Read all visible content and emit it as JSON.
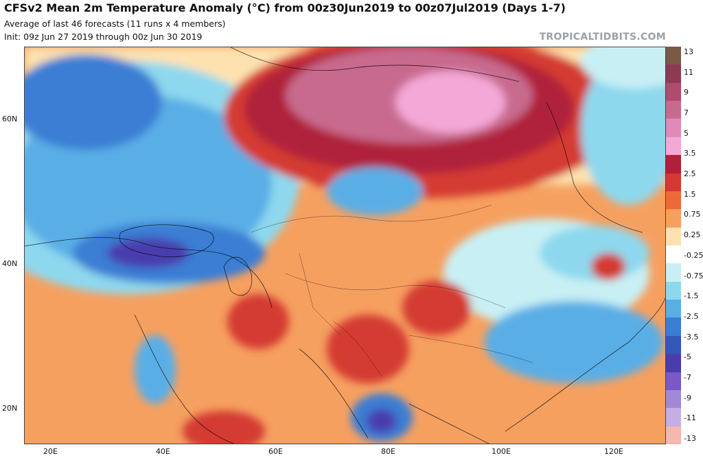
{
  "header": {
    "title": "CFSv2 Mean 2m Temperature Anomaly (°C) from 00z30Jun2019 to 00z07Jul2019 (Days 1-7)",
    "subtitle": "Average of last 46 forecasts (11 runs x 4 members)",
    "init": "Init: 09z Jun 27 2019 through 00z Jun 30 2019",
    "brand": "TROPICALTIDBITS.COM"
  },
  "axes": {
    "lat_labels": [
      "60N",
      "40N",
      "20N"
    ],
    "lon_labels": [
      "20E",
      "40E",
      "60E",
      "80E",
      "100E",
      "120E"
    ]
  },
  "colorbar": {
    "labels": [
      "13",
      "11",
      "9",
      "7",
      "5",
      "3.5",
      "2.5",
      "1.5",
      "0.75",
      "0.25",
      "-0.25",
      "-0.75",
      "-1.5",
      "-2.5",
      "-3.5",
      "-5",
      "-7",
      "-9",
      "-11",
      "-13"
    ],
    "colors": [
      "#7a5a45",
      "#8e3a52",
      "#b04a6e",
      "#c86a8e",
      "#e08ab8",
      "#f4a8d8",
      "#b0203a",
      "#d43a32",
      "#ec6a3a",
      "#f6a060",
      "#fde2b0",
      "#ffffff",
      "#c8f0f4",
      "#8ed8ee",
      "#5aaee6",
      "#3a7ed4",
      "#3458b8",
      "#4a3cae",
      "#7a58c8",
      "#a08ad8",
      "#c4aee4",
      "#f4b8b0"
    ]
  },
  "map": {
    "colors": {
      "ocean_cool": "#8ed8ee",
      "deep_blue": "#3a7ed4",
      "purple": "#4a3cae",
      "hot_pink": "#e08ab8",
      "maroon": "#b0203a",
      "red": "#d43a32",
      "orange": "#ec6a3a",
      "light_orange": "#f6a060",
      "cream": "#fde2b0",
      "white": "#ffffff",
      "light_blue": "#c8f0f4"
    }
  }
}
